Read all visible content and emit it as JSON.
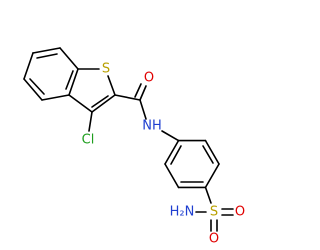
{
  "atoms": {
    "thiophene_s": "S",
    "carbonyl_o": "O",
    "chlorine": "Cl",
    "amide_n": "NH",
    "sulfonyl_s": "S",
    "sulfonyl_o1": "O",
    "sulfonyl_o2": "O",
    "amine_n": "H₂N"
  }
}
